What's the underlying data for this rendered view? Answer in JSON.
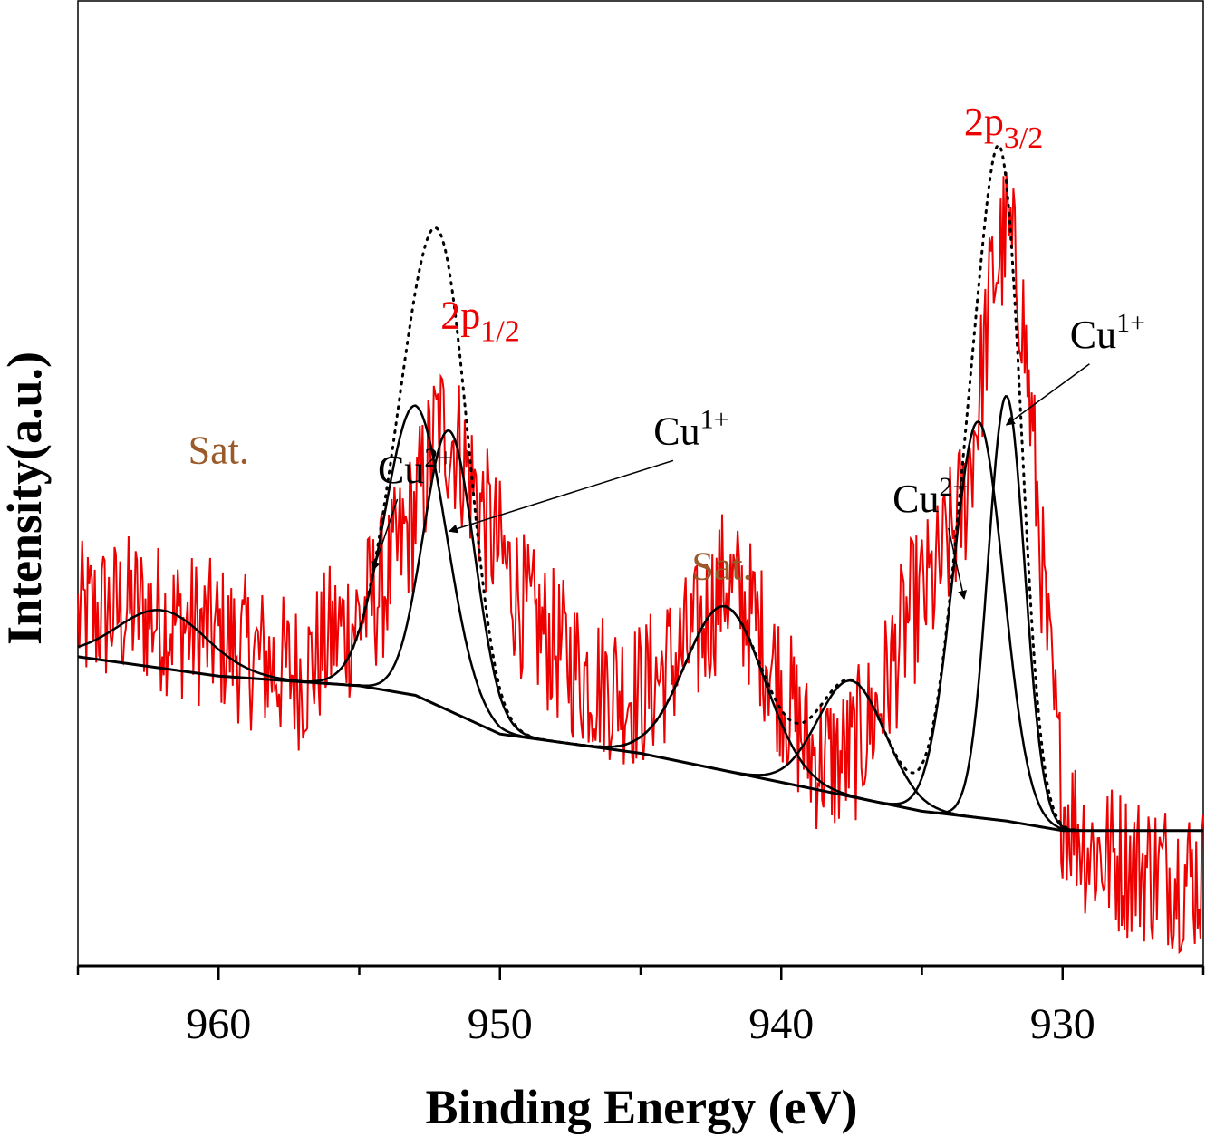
{
  "chart_data": {
    "type": "line",
    "title": "",
    "xlabel": "Binding Energy (eV)",
    "ylabel": "Intensity(a.u.)",
    "x_reversed": true,
    "xlim": [
      965,
      925
    ],
    "ylim": [
      0,
      100
    ],
    "xticks": [
      960,
      950,
      940,
      930
    ],
    "xtick_labels": [
      "960",
      "950",
      "940",
      "930"
    ],
    "colors": {
      "raw": "#ee0000",
      "fit": "#000000",
      "sat_label": "#9a5a2a",
      "peak_label": "#ee0000"
    },
    "raw_spectrum": {
      "noise_amplitude": 8,
      "x": [
        965,
        963,
        962,
        960,
        958,
        957,
        956,
        955,
        954,
        953,
        952.2,
        951.5,
        950.5,
        949,
        947,
        945,
        944,
        943,
        942,
        941,
        940,
        939,
        938,
        937.5,
        936.5,
        935.5,
        934.5,
        933.5,
        933,
        932.5,
        932,
        931.5,
        931,
        930.5,
        930,
        929,
        927,
        925
      ],
      "y": [
        36,
        37,
        36,
        34,
        31,
        30,
        34,
        36,
        40,
        47,
        56,
        54,
        46,
        36,
        30,
        28,
        31,
        34,
        40,
        36,
        29,
        22,
        21,
        22,
        27,
        36,
        40,
        48,
        58,
        71,
        76,
        70,
        52,
        32,
        17,
        12,
        10,
        9
      ]
    },
    "background": {
      "x": [
        965,
        960,
        955,
        953,
        950,
        945,
        940,
        935,
        932,
        930,
        925
      ],
      "y": [
        32,
        30,
        29,
        28,
        24,
        22,
        19,
        16,
        15,
        14,
        14
      ]
    },
    "components": [
      {
        "name": "Sat.",
        "center": 962.0,
        "height": 6,
        "width": 1.6
      },
      {
        "name": "Cu2+",
        "center": 953.0,
        "height": 30,
        "width": 1.1
      },
      {
        "name": "Cu1+",
        "center": 951.8,
        "height": 29,
        "width": 0.9
      },
      {
        "name": "Sat.",
        "center": 942.0,
        "height": 17,
        "width": 1.4
      },
      {
        "name": "Sat.",
        "center": 937.5,
        "height": 12,
        "width": 1.2
      },
      {
        "name": "Cu2+",
        "center": 933.0,
        "height": 41,
        "width": 0.9
      },
      {
        "name": "Cu1+",
        "center": 932.0,
        "height": 44,
        "width": 0.65
      }
    ],
    "envelope_label": "dotted",
    "annotations": [
      {
        "text": "Sat.",
        "sup": "",
        "sub": "",
        "x": 960,
        "y": 52,
        "color": "sat"
      },
      {
        "text": "Cu",
        "sup": "2+",
        "sub": "",
        "x": 953,
        "y": 50,
        "color": "black",
        "arrow_to": [
          954.5,
          41
        ]
      },
      {
        "text": "2p",
        "sup": "",
        "sub": "1/2",
        "x": 950.7,
        "y": 66,
        "color": "peak"
      },
      {
        "text": "Cu",
        "sup": "1+",
        "sub": "",
        "x": 943.2,
        "y": 54,
        "color": "black",
        "arrow_to": [
          951.8,
          45
        ]
      },
      {
        "text": "Sat.",
        "sup": "",
        "sub": "",
        "x": 942.1,
        "y": 40,
        "color": "sat"
      },
      {
        "text": "Cu",
        "sup": "2+",
        "sub": "",
        "x": 934.7,
        "y": 47,
        "color": "black",
        "arrow_to": [
          933.5,
          38
        ]
      },
      {
        "text": "2p",
        "sup": "",
        "sub": "3/2",
        "x": 932.1,
        "y": 86,
        "color": "peak"
      },
      {
        "text": "Cu",
        "sup": "1+",
        "sub": "",
        "x": 928.4,
        "y": 64,
        "color": "black",
        "arrow_to": [
          932.0,
          56
        ]
      }
    ]
  }
}
